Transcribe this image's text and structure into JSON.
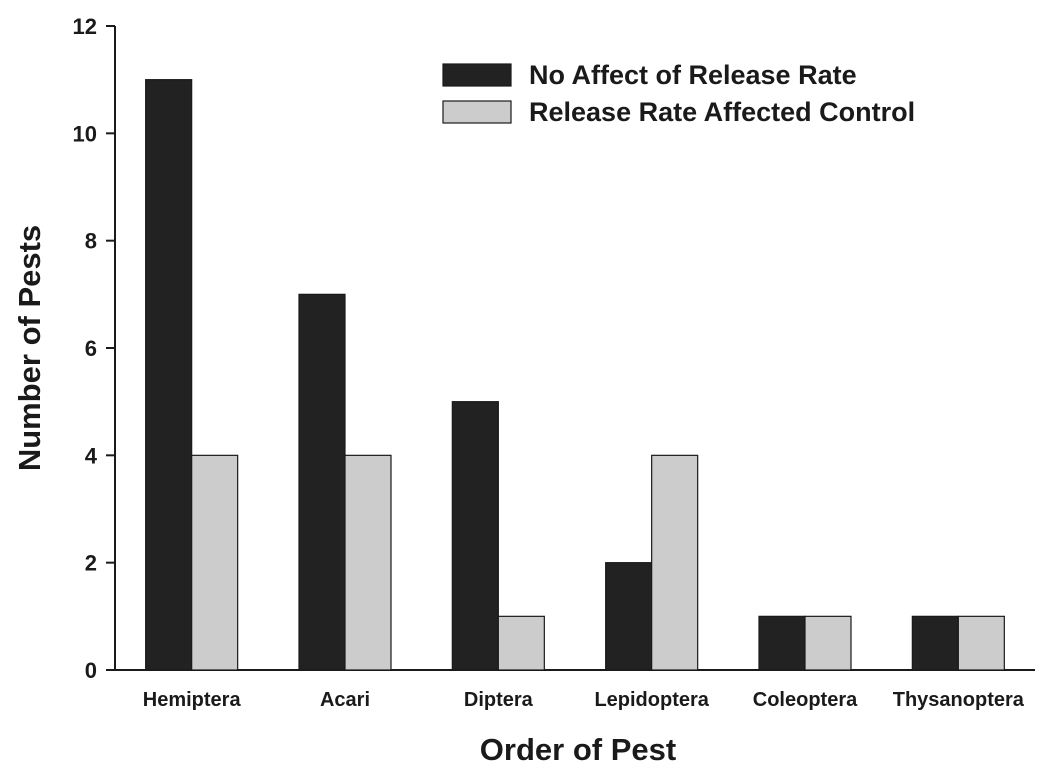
{
  "chart_data": {
    "type": "bar",
    "title": "",
    "xlabel": "Order of Pest",
    "ylabel": "Number of Pests",
    "categories": [
      "Hemiptera",
      "Acari",
      "Diptera",
      "Lepidoptera",
      "Coleoptera",
      "Thysanoptera"
    ],
    "series": [
      {
        "name": "No Affect of Release Rate",
        "values": [
          11,
          7,
          5,
          2,
          1,
          1
        ],
        "color": "#222222"
      },
      {
        "name": "Release Rate Affected Control",
        "values": [
          4,
          4,
          1,
          4,
          1,
          1
        ],
        "color": "#cccccc"
      }
    ],
    "ylim": [
      0,
      12
    ],
    "yticks": [
      0,
      2,
      4,
      6,
      8,
      10,
      12
    ],
    "grid": false,
    "legend_position": "top-right"
  }
}
